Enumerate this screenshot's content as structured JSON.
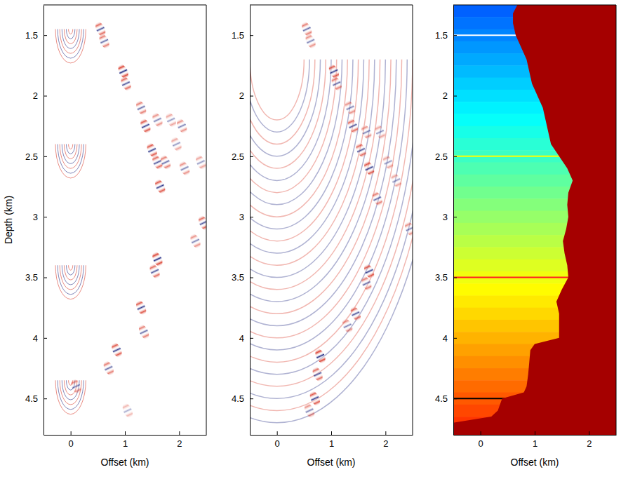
{
  "chart_data": [
    {
      "type": "wavefield",
      "x_label": "Offset (km)",
      "y_label": "Depth (km)",
      "xlim": [
        -0.5,
        2.5
      ],
      "ylim": [
        1.25,
        4.8
      ],
      "xticks": [
        0,
        1,
        2
      ],
      "yticks": [
        1.5,
        2,
        2.5,
        3,
        3.5,
        4,
        4.5
      ],
      "events": {
        "x": [
          0.55,
          0.62,
          0.97,
          1.02,
          1.3,
          1.38,
          1.6,
          1.85,
          2.05,
          1.5,
          1.6,
          1.75,
          1.65,
          2.1,
          1.95,
          2.4,
          2.45,
          2.3,
          1.6,
          1.55,
          1.3,
          1.35,
          0.85,
          0.7,
          0.1,
          1.05
        ],
        "y": [
          1.45,
          1.55,
          1.8,
          1.9,
          2.1,
          2.25,
          2.2,
          2.2,
          2.25,
          2.45,
          2.55,
          2.55,
          2.75,
          2.6,
          2.4,
          2.55,
          3.05,
          3.2,
          3.35,
          3.45,
          3.75,
          3.95,
          4.1,
          4.25,
          4.4,
          4.6
        ],
        "values": [
          0.8,
          0.7,
          1,
          0.8,
          0.7,
          0.9,
          0.6,
          0.5,
          0.6,
          0.9,
          0.8,
          0.7,
          0.9,
          0.6,
          0.5,
          0.5,
          0.8,
          0.6,
          1,
          0.8,
          0.9,
          0.7,
          0.9,
          0.7,
          0.6,
          0.4
        ]
      },
      "rings": [
        {
          "x": 0,
          "y": 1.45,
          "radii": [
            0.04,
            0.08,
            0.12,
            0.16,
            0.2,
            0.24,
            0.28
          ]
        },
        {
          "x": 0,
          "y": 2.4,
          "radii": [
            0.04,
            0.08,
            0.12,
            0.16,
            0.2,
            0.24,
            0.28
          ]
        },
        {
          "x": 0,
          "y": 3.4,
          "radii": [
            0.04,
            0.08,
            0.12,
            0.16,
            0.2,
            0.24,
            0.28
          ]
        },
        {
          "x": 0,
          "y": 4.35,
          "radii": [
            0.04,
            0.08,
            0.12,
            0.16,
            0.2,
            0.24,
            0.28
          ]
        }
      ]
    },
    {
      "type": "wavefield",
      "x_label": "Offset (km)",
      "xlim": [
        -0.5,
        2.5
      ],
      "ylim": [
        1.25,
        4.8
      ],
      "xticks": [
        0,
        1,
        2
      ],
      "yticks": [
        1.5,
        2,
        2.5,
        3,
        3.5,
        4,
        4.5
      ],
      "events": {
        "x": [
          0.55,
          0.62,
          1.05,
          1.1,
          1.35,
          1.4,
          1.65,
          1.9,
          2.05,
          1.55,
          1.7,
          2.2,
          1.85,
          2.45,
          1.7,
          1.65,
          1.45,
          1.3,
          0.8,
          0.75,
          0.7,
          0.6
        ],
        "y": [
          1.45,
          1.55,
          1.8,
          1.9,
          2.1,
          2.25,
          2.3,
          2.3,
          2.55,
          2.45,
          2.6,
          2.7,
          2.85,
          3.1,
          3.45,
          3.55,
          3.8,
          3.9,
          4.15,
          4.3,
          4.5,
          4.6
        ],
        "values": [
          0.7,
          0.6,
          0.9,
          0.7,
          0.6,
          0.8,
          0.6,
          0.5,
          0.5,
          0.8,
          0.9,
          0.5,
          0.7,
          0.6,
          0.9,
          0.7,
          0.8,
          0.6,
          1,
          0.8,
          0.9,
          0.6
        ]
      },
      "rings": [
        {
          "x": 0,
          "y": 1.7,
          "radii": [
            0.5,
            0.6,
            0.7,
            0.8,
            0.9,
            1.0,
            1.1,
            1.2,
            1.3,
            1.4,
            1.5,
            1.6,
            1.7,
            1.8,
            1.9,
            2.0,
            2.1,
            2.2,
            2.3,
            2.4,
            2.5,
            2.6,
            2.7,
            2.8,
            2.9,
            3.0
          ]
        }
      ]
    },
    {
      "type": "velocity_model",
      "x_label": "Offset (km)",
      "xlim": [
        -0.5,
        2.5
      ],
      "ylim": [
        1.25,
        4.8
      ],
      "xticks": [
        0,
        1,
        2
      ],
      "yticks": [
        1.5,
        2,
        2.5,
        3,
        3.5,
        4,
        4.5
      ],
      "clim": [
        1.25,
        4.8
      ],
      "layers": {
        "depths": [
          1.25,
          1.35,
          1.45,
          1.55,
          1.65,
          1.75,
          1.85,
          1.95,
          2.05,
          2.15,
          2.25,
          2.35,
          2.45,
          2.55,
          2.65,
          2.75,
          2.85,
          2.95,
          3.05,
          3.15,
          3.25,
          3.35,
          3.45,
          3.55,
          3.65,
          3.75,
          3.85,
          3.95,
          4.05,
          4.15,
          4.25,
          4.35,
          4.45,
          4.55,
          4.65,
          4.75
        ]
      },
      "horizons": {
        "values": [
          1.5,
          2.5,
          3.5,
          4.5
        ],
        "colors": [
          "#ffffff",
          "#ffff00",
          "#ff2020",
          "#000000"
        ]
      },
      "boundary": {
        "x": [
          0.68,
          0.6,
          0.6,
          0.65,
          0.75,
          0.85,
          0.9,
          0.95,
          1.05,
          1.15,
          1.2,
          1.25,
          1.3,
          1.45,
          1.6,
          1.7,
          1.62,
          1.6,
          1.62,
          1.58,
          1.52,
          1.55,
          1.6,
          1.62,
          1.5,
          1.4,
          1.45,
          1.45,
          1.45,
          1.0,
          0.92,
          0.9,
          0.88,
          0.85,
          0.8,
          0.4,
          0.32,
          0.2,
          -0.5,
          -0.5
        ],
        "y": [
          1.25,
          1.32,
          1.4,
          1.5,
          1.6,
          1.7,
          1.8,
          1.9,
          2.0,
          2.1,
          2.2,
          2.3,
          2.4,
          2.5,
          2.6,
          2.7,
          2.8,
          2.9,
          3.0,
          3.1,
          3.2,
          3.3,
          3.4,
          3.5,
          3.6,
          3.7,
          3.8,
          3.9,
          4.0,
          4.05,
          4.1,
          4.2,
          4.3,
          4.4,
          4.45,
          4.5,
          4.6,
          4.65,
          4.7,
          4.8
        ]
      },
      "color": "#a50000"
    }
  ]
}
